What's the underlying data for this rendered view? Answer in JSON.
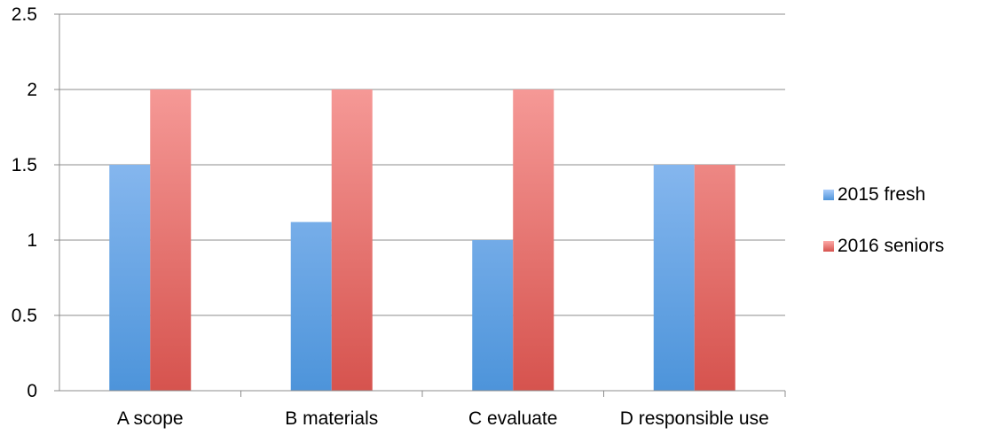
{
  "chart_data": {
    "type": "bar",
    "categories": [
      "A scope",
      "B materials",
      "C evaluate",
      "D responsible use"
    ],
    "series": [
      {
        "name": "2015 fresh",
        "values": [
          1.5,
          1.12,
          1.0,
          1.5
        ],
        "color_top": "#aacdfb",
        "color_bottom": "#4d94da"
      },
      {
        "name": "2016 seniors",
        "values": [
          2.0,
          2.0,
          2.0,
          1.5
        ],
        "color_top": "#fdaaa8",
        "color_bottom": "#d6534e"
      }
    ],
    "y_ticks": [
      "0",
      "0.5",
      "1",
      "1.5",
      "2",
      "2.5"
    ],
    "ylim": [
      0,
      2.5
    ],
    "grid": true,
    "legend_position": "right"
  }
}
